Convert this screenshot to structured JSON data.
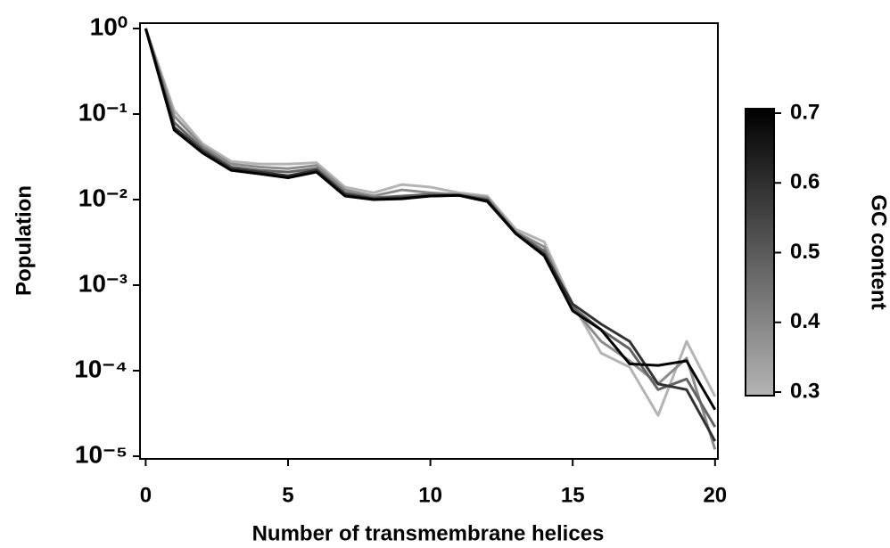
{
  "chart_data": {
    "type": "line",
    "xlabel": "Number of transmembrane helices",
    "ylabel": "Population",
    "log_y": true,
    "x": [
      0,
      1,
      2,
      3,
      4,
      5,
      6,
      7,
      8,
      9,
      10,
      11,
      12,
      13,
      14,
      15,
      16,
      17,
      18,
      19,
      20
    ],
    "xlim": [
      -0.2,
      20.1
    ],
    "xticks": [
      0,
      5,
      10,
      15,
      20
    ],
    "ylim": [
      9.3e-06,
      1.155
    ],
    "yticks": [
      {
        "value": 1,
        "label": "10⁰"
      },
      {
        "value": 0.1,
        "label": "10⁻¹"
      },
      {
        "value": 0.01,
        "label": "10⁻²"
      },
      {
        "value": 0.001,
        "label": "10⁻³"
      },
      {
        "value": 0.0001,
        "label": "10⁻⁴"
      },
      {
        "value": 1e-05,
        "label": "10⁻⁵"
      }
    ],
    "series": [
      {
        "color": "#b4b4b4",
        "values": [
          1,
          0.11,
          0.045,
          0.028,
          0.026,
          0.026,
          0.027,
          0.014,
          0.012,
          0.015,
          0.014,
          0.012,
          0.011,
          0.0045,
          0.0032,
          0.0006,
          0.00016,
          0.00011,
          3e-05,
          0.00022,
          5e-05
        ]
      },
      {
        "color": "#8c8c8c",
        "values": [
          1,
          0.095,
          0.042,
          0.026,
          0.024,
          0.023,
          0.025,
          0.013,
          0.011,
          0.013,
          0.012,
          0.0115,
          0.0105,
          0.0042,
          0.0028,
          0.00055,
          0.00022,
          0.00013,
          7e-05,
          0.00014,
          1.2e-05
        ]
      },
      {
        "color": "#646464",
        "values": [
          1,
          0.08,
          0.039,
          0.024,
          0.022,
          0.021,
          0.023,
          0.012,
          0.0105,
          0.011,
          0.0115,
          0.0113,
          0.01,
          0.0041,
          0.0025,
          0.00055,
          0.0003,
          0.00018,
          6e-05,
          8e-05,
          2.2e-05
        ]
      },
      {
        "color": "#323232",
        "values": [
          1,
          0.07,
          0.037,
          0.023,
          0.021,
          0.019,
          0.022,
          0.0115,
          0.0102,
          0.0105,
          0.011,
          0.0112,
          0.0098,
          0.004,
          0.0023,
          0.0006,
          0.00035,
          0.00022,
          7e-05,
          6e-05,
          1.5e-05
        ]
      },
      {
        "color": "#000000",
        "values": [
          1,
          0.065,
          0.035,
          0.022,
          0.02,
          0.018,
          0.021,
          0.011,
          0.01,
          0.0102,
          0.011,
          0.0112,
          0.0095,
          0.004,
          0.0022,
          0.0005,
          0.0003,
          0.00012,
          0.000115,
          0.00013,
          3.5e-05
        ]
      }
    ],
    "colorbar": {
      "label": "GC content",
      "lim": [
        0.3,
        0.7
      ],
      "ticks": [
        0.3,
        0.4,
        0.5,
        0.6,
        0.7
      ],
      "colors": [
        "#b4b4b4",
        "#000000"
      ]
    }
  }
}
